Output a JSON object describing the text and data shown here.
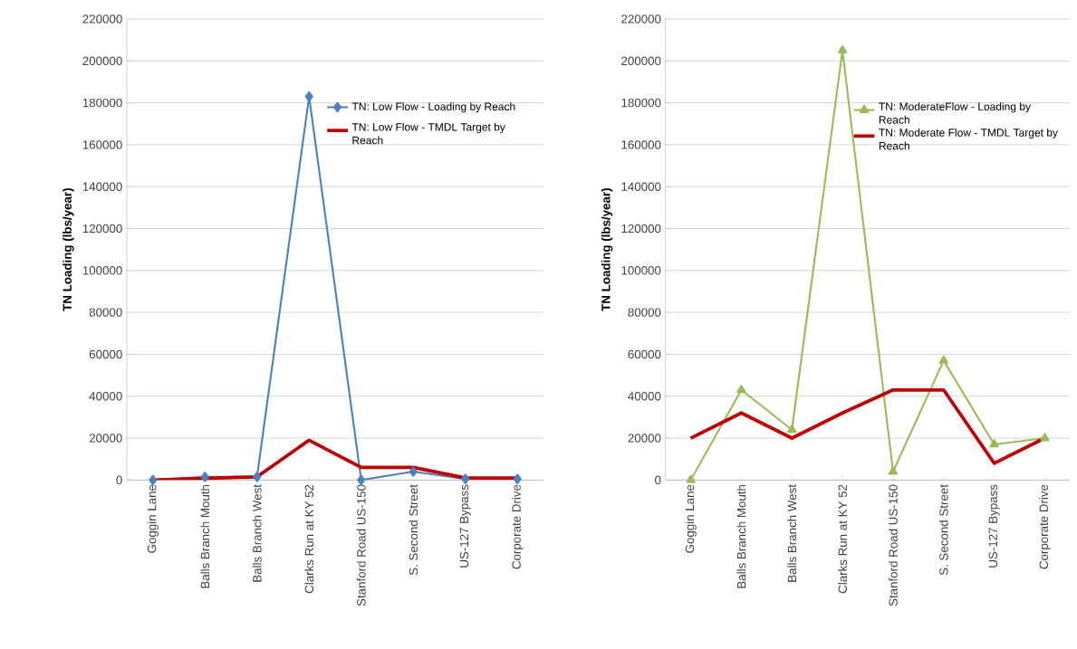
{
  "chart_data": [
    {
      "type": "line",
      "categories": [
        "Goggin Lane",
        "Balls Branch Mouth",
        "Balls Branch West",
        "Clarks Run at KY 52",
        "Stanford Road US-150",
        "S. Second Street",
        "US-127 Bypass",
        "Corporate Drive"
      ],
      "ylabel": "TN Loading (lbs/year)",
      "ylim": [
        0,
        220000
      ],
      "yticks": [
        0,
        20000,
        40000,
        60000,
        80000,
        100000,
        120000,
        140000,
        160000,
        180000,
        200000,
        220000
      ],
      "grid": "y",
      "legend": "top right",
      "series": [
        {
          "name": "TN: Low Flow - Loading by Reach",
          "color": "#4f81bd",
          "marker": "diamond",
          "values": [
            0,
            1500,
            1500,
            183000,
            0,
            4000,
            500,
            500
          ]
        },
        {
          "name": "TN: Low Flow - TMDL Target by Reach",
          "color": "#c00000",
          "marker": "none",
          "values": [
            0,
            800,
            1500,
            19000,
            6000,
            6000,
            1000,
            1000
          ]
        }
      ]
    },
    {
      "type": "line",
      "categories": [
        "Goggin Lane",
        "Balls Branch Mouth",
        "Balls Branch West",
        "Clarks Run at KY 52",
        "Stanford Road US-150",
        "S. Second Street",
        "US-127 Bypass",
        "Corporate Drive"
      ],
      "ylabel": "TN Loading (lbs/year)",
      "ylim": [
        0,
        220000
      ],
      "yticks": [
        0,
        20000,
        40000,
        60000,
        80000,
        100000,
        120000,
        140000,
        160000,
        180000,
        200000,
        220000
      ],
      "grid": "y",
      "legend": "top right",
      "series": [
        {
          "name": "TN: ModerateFlow - Loading by Reach",
          "color": "#9bbb59",
          "marker": "triangle",
          "values": [
            0,
            43000,
            24000,
            205000,
            4000,
            57000,
            17000,
            20000
          ]
        },
        {
          "name": "TN: Moderate Flow - TMDL Target by Reach",
          "color": "#c00000",
          "marker": "none",
          "values": [
            20000,
            32000,
            20000,
            32000,
            43000,
            43000,
            8000,
            20000
          ]
        }
      ]
    }
  ]
}
